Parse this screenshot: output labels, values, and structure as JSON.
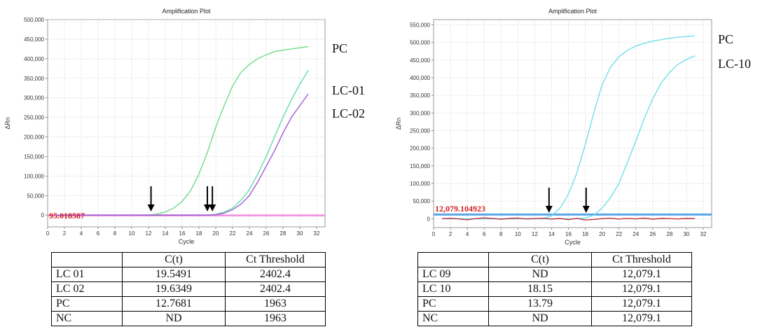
{
  "chart_data": [
    {
      "type": "line",
      "title": "Amplification Plot",
      "xlabel": "Cycle",
      "ylabel": "ΔRn",
      "xlim": [
        0,
        33
      ],
      "ylim": [
        -30000,
        500000
      ],
      "x_ticks": [
        0,
        2,
        4,
        6,
        8,
        10,
        12,
        14,
        16,
        18,
        20,
        22,
        24,
        26,
        28,
        30,
        32
      ],
      "y_ticks": [
        0,
        50000,
        100000,
        150000,
        200000,
        250000,
        300000,
        350000,
        400000,
        450000,
        500000
      ],
      "y_tick_labels": [
        "0",
        "50,000",
        "100,000",
        "150,000",
        "200,000",
        "250,000",
        "300,000",
        "350,000",
        "400,000",
        "450,000",
        "500,000"
      ],
      "grid": true,
      "threshold_text": "95.018587",
      "thresholds": [
        {
          "value": -1500,
          "color": "#e87ad8"
        },
        {
          "value": 600,
          "color": "#f2a6e8"
        }
      ],
      "arrows_at_cycle": [
        12.3,
        19.0,
        19.6
      ],
      "series": [
        {
          "name": "PC",
          "color": "#6fdb8c",
          "x": [
            1,
            2,
            3,
            4,
            5,
            6,
            7,
            8,
            9,
            10,
            11,
            12,
            13,
            14,
            15,
            16,
            17,
            18,
            19,
            20,
            21,
            22,
            23,
            24,
            25,
            26,
            27,
            28,
            29,
            30,
            31
          ],
          "y": [
            0,
            0,
            0,
            0,
            0,
            0,
            0,
            0,
            0,
            0,
            0,
            0,
            2500,
            8000,
            18000,
            35000,
            62000,
            105000,
            160000,
            225000,
            280000,
            330000,
            365000,
            385000,
            400000,
            410000,
            418000,
            422000,
            425000,
            428000,
            431000
          ]
        },
        {
          "name": "LC-01",
          "color": "#5fe0a0",
          "x": [
            1,
            2,
            3,
            4,
            5,
            6,
            7,
            8,
            9,
            10,
            11,
            12,
            13,
            14,
            15,
            16,
            17,
            18,
            19,
            20,
            21,
            22,
            23,
            24,
            25,
            26,
            27,
            28,
            29,
            30,
            31
          ],
          "y": [
            0,
            0,
            0,
            0,
            0,
            0,
            0,
            0,
            0,
            0,
            0,
            0,
            0,
            0,
            0,
            0,
            0,
            0,
            0,
            2000,
            8000,
            18000,
            38000,
            65000,
            105000,
            150000,
            200000,
            250000,
            295000,
            335000,
            370000
          ]
        },
        {
          "name": "LC-02",
          "color": "#a35ad6",
          "x": [
            1,
            2,
            3,
            4,
            5,
            6,
            7,
            8,
            9,
            10,
            11,
            12,
            13,
            14,
            15,
            16,
            17,
            18,
            19,
            20,
            21,
            22,
            23,
            24,
            25,
            26,
            27,
            28,
            29,
            30,
            31
          ],
          "y": [
            0,
            0,
            0,
            0,
            0,
            0,
            0,
            0,
            0,
            0,
            0,
            0,
            0,
            0,
            0,
            0,
            0,
            0,
            0,
            1000,
            5000,
            14000,
            28000,
            50000,
            85000,
            125000,
            165000,
            210000,
            250000,
            280000,
            310000
          ]
        }
      ]
    },
    {
      "type": "line",
      "title": "Amplification Plot",
      "xlabel": "Cycle",
      "ylabel": "ΔRn",
      "xlim": [
        0,
        33
      ],
      "ylim": [
        -25000,
        565000
      ],
      "x_ticks": [
        0,
        2,
        4,
        6,
        8,
        10,
        12,
        14,
        16,
        18,
        20,
        22,
        24,
        26,
        28,
        30,
        32
      ],
      "y_ticks": [
        0,
        50000,
        100000,
        150000,
        200000,
        250000,
        300000,
        350000,
        400000,
        450000,
        500000,
        550000
      ],
      "y_tick_labels": [
        "0",
        "50,000",
        "100,000",
        "150,000",
        "200,000",
        "250,000",
        "300,000",
        "350,000",
        "400,000",
        "450,000",
        "500,000",
        "550,000"
      ],
      "grid": true,
      "threshold_text": "12,079.104923",
      "thresholds": [
        {
          "value": 12079.1,
          "color": "#5aa8e8"
        }
      ],
      "arrows_at_cycle": [
        13.7,
        18.1
      ],
      "series": [
        {
          "name": "PC",
          "color": "#6fe0e8",
          "x": [
            1,
            2,
            3,
            4,
            5,
            6,
            7,
            8,
            9,
            10,
            11,
            12,
            13,
            14,
            15,
            16,
            17,
            18,
            19,
            20,
            21,
            22,
            23,
            24,
            25,
            26,
            27,
            28,
            29,
            30,
            31
          ],
          "y": [
            0,
            0,
            0,
            0,
            0,
            0,
            0,
            0,
            0,
            0,
            0,
            0,
            500,
            8000,
            30000,
            70000,
            130000,
            210000,
            300000,
            380000,
            430000,
            460000,
            478000,
            490000,
            498000,
            504000,
            508000,
            512000,
            515000,
            517000,
            519000
          ]
        },
        {
          "name": "LC-10",
          "color": "#6fe0e8",
          "x": [
            1,
            2,
            3,
            4,
            5,
            6,
            7,
            8,
            9,
            10,
            11,
            12,
            13,
            14,
            15,
            16,
            17,
            18,
            19,
            20,
            21,
            22,
            23,
            24,
            25,
            26,
            27,
            28,
            29,
            30,
            31
          ],
          "y": [
            0,
            0,
            0,
            0,
            0,
            0,
            0,
            0,
            0,
            0,
            0,
            0,
            0,
            0,
            0,
            0,
            0,
            2000,
            10000,
            30000,
            60000,
            100000,
            160000,
            220000,
            285000,
            340000,
            385000,
            415000,
            438000,
            452000,
            462000
          ]
        },
        {
          "color": "#c0303a",
          "x": [
            1,
            2,
            3,
            4,
            5,
            6,
            7,
            8,
            9,
            10,
            11,
            12,
            13,
            14,
            15,
            16,
            17,
            18,
            19,
            20,
            21,
            22,
            23,
            24,
            25,
            26,
            27,
            28,
            29,
            30,
            31
          ],
          "y": [
            0,
            1500,
            -500,
            -3000,
            500,
            2500,
            1000,
            -1500,
            800,
            2000,
            -800,
            500,
            1500,
            -1000,
            800,
            -2500,
            1200,
            -3500,
            -2000,
            500,
            1500,
            -800,
            1000,
            -500,
            1800,
            -1200,
            800,
            500,
            -600,
            800,
            500
          ]
        }
      ]
    }
  ],
  "tables": {
    "left": {
      "headers": [
        "",
        "C(t)",
        "Ct Threshold"
      ],
      "rows": [
        [
          "LC 01",
          "19.5491",
          "2402.4"
        ],
        [
          "LC 02",
          "19.6349",
          "2402.4"
        ],
        [
          "PC",
          "12.7681",
          "1963"
        ],
        [
          "NC",
          "ND",
          "1963"
        ]
      ]
    },
    "right": {
      "headers": [
        "",
        "C(t)",
        "Ct Threshold"
      ],
      "rows": [
        [
          "LC 09",
          "ND",
          "12,079.1"
        ],
        [
          "LC 10",
          "18.15",
          "12,079.1"
        ],
        [
          "PC",
          "13.79",
          "12,079.1"
        ],
        [
          "NC",
          "ND",
          "12,079.1"
        ]
      ]
    }
  }
}
